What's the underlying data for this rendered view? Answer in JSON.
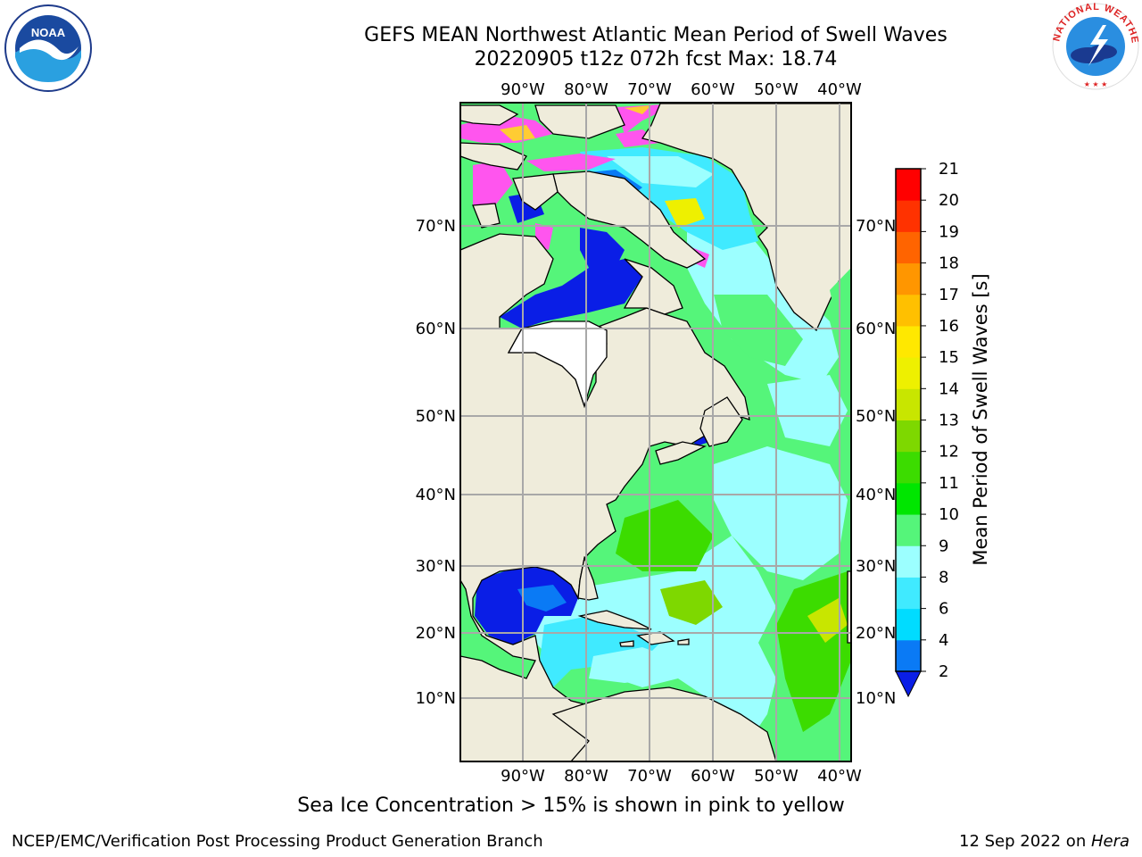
{
  "header": {
    "title_line1": "GEFS MEAN Northwest Atlantic Mean Period of Swell Waves",
    "title_line2": "20220905 t12z 072h fcst   Max: 18.74"
  },
  "logos": {
    "left": "noaa-logo",
    "right": "national-weather-service-logo",
    "left_text": "NOAA",
    "right_ring_text": "NATIONAL WEATHER SERVICE"
  },
  "map": {
    "lon_labels": [
      "90°W",
      "80°W",
      "70°W",
      "60°W",
      "50°W",
      "40°W"
    ],
    "lat_labels": [
      "70°N",
      "60°N",
      "50°N",
      "40°N",
      "30°N",
      "20°N",
      "10°N"
    ],
    "colors": {
      "land": "#efecdb",
      "ice_pink": "#ff55ee",
      "ice_yellow": "#ffcc33",
      "grid": "#a8a8a8"
    }
  },
  "colorbar": {
    "label": "Mean Period of Swell Waves [s]",
    "ticks": [
      "2",
      "4",
      "6",
      "8",
      "9",
      "10",
      "11",
      "12",
      "13",
      "14",
      "15",
      "16",
      "17",
      "18",
      "19",
      "20",
      "21"
    ],
    "colors": [
      "#0a1ee6",
      "#0a7af5",
      "#00dcff",
      "#40eaff",
      "#9cffff",
      "#55f57a",
      "#00e600",
      "#3cdc00",
      "#7ed800",
      "#c8e600",
      "#eef000",
      "#ffe800",
      "#ffc000",
      "#ff9600",
      "#ff6400",
      "#ff3200",
      "#ff0000"
    ]
  },
  "caption": "Sea Ice Concentration > 15% is shown in pink to yellow",
  "footer": {
    "left": "NCEP/EMC/Verification Post Processing Product Generation Branch",
    "right_prefix": "12 Sep 2022 on ",
    "right_host": "Hera"
  }
}
